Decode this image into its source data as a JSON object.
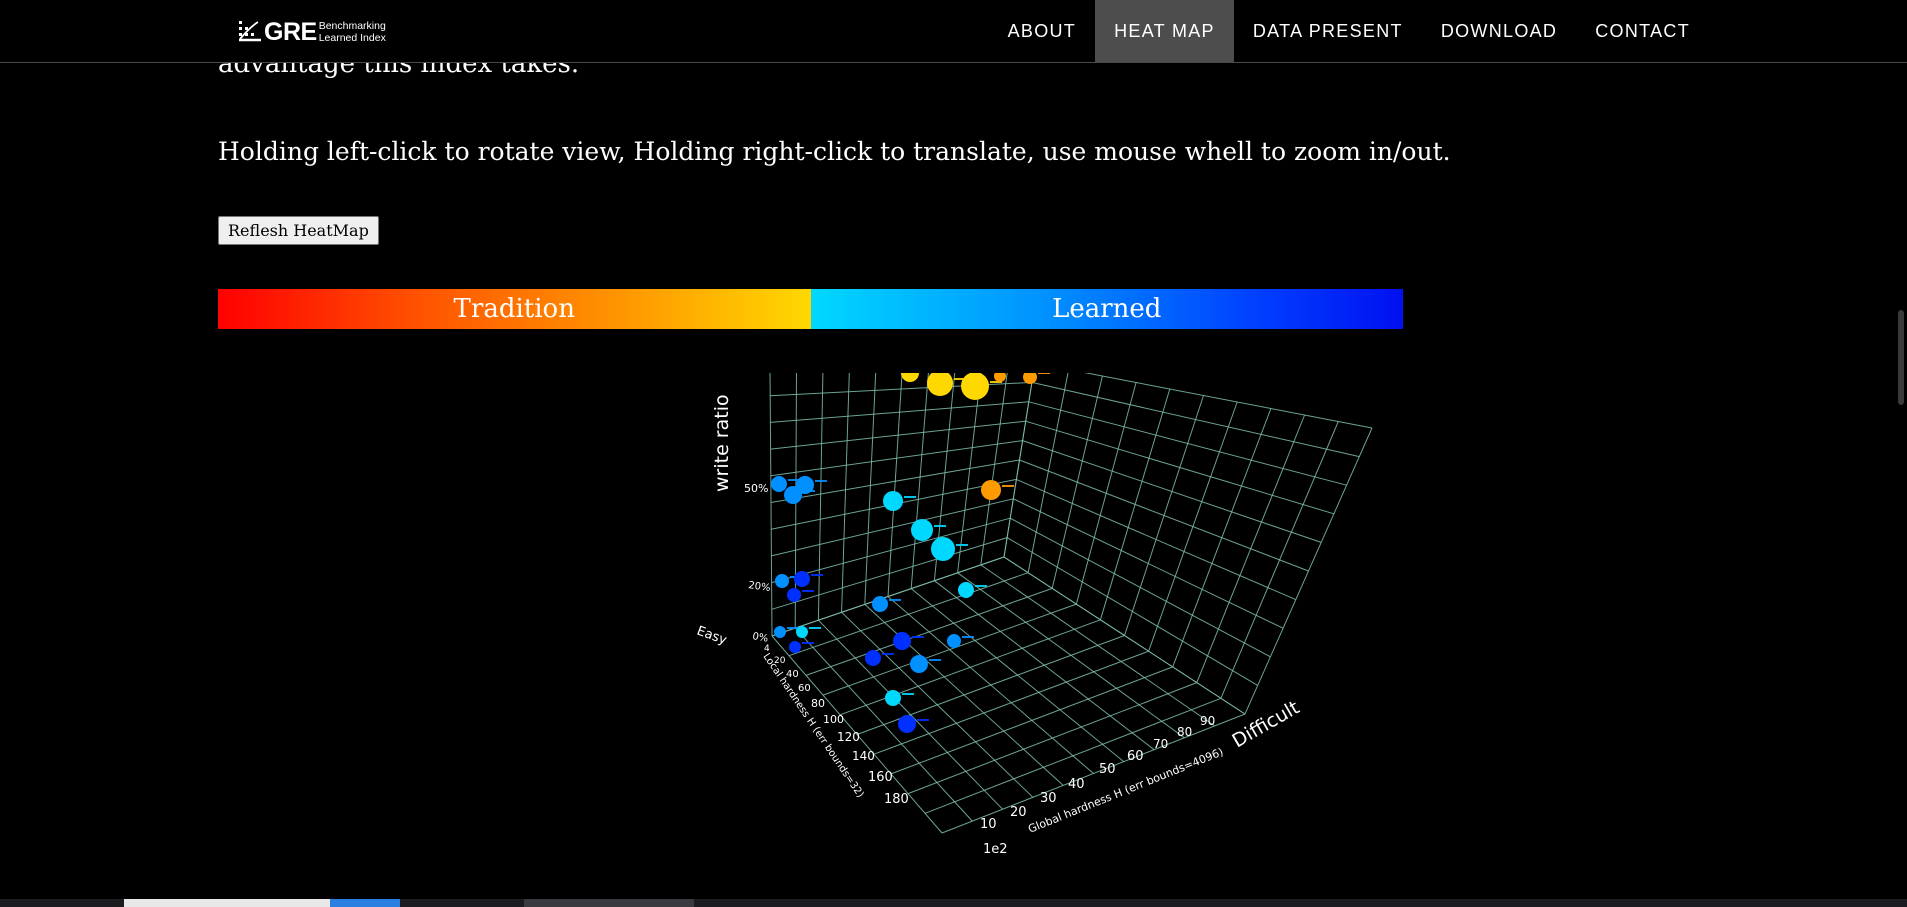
{
  "brand": {
    "name": "GRE",
    "sub_line1": "Benchmarking",
    "sub_line2": "Learned Index"
  },
  "nav": {
    "items": [
      {
        "label": "ABOUT",
        "active": false
      },
      {
        "label": "HEAT MAP",
        "active": true
      },
      {
        "label": "DATA PRESENT",
        "active": false
      },
      {
        "label": "DOWNLOAD",
        "active": false
      },
      {
        "label": "CONTACT",
        "active": false
      }
    ]
  },
  "content": {
    "cut_text": "advantage this index takes.",
    "help_text": "Holding left-click to rotate view, Holding right-click to translate, use mouse whell to zoom in/out.",
    "refresh_label": "Reflesh HeatMap"
  },
  "legend": {
    "left_label": "Tradition",
    "right_label": "Learned",
    "tradition_colors": [
      "#ff0000",
      "#ff5500",
      "#ff9a00",
      "#ffd800"
    ],
    "learned_colors": [
      "#00d8ff",
      "#0090ff",
      "#0040ff",
      "#0010f0"
    ]
  },
  "chart_data": {
    "type": "scatter",
    "dimensions": 3,
    "axes": {
      "z_label": "write ratio",
      "z_ticks": [
        "0%",
        "20%",
        "50%"
      ],
      "x_label": "Global hardness H (err bounds=4096)",
      "x_ticks": [
        "10",
        "20",
        "30",
        "40",
        "50",
        "60",
        "70",
        "80",
        "90"
      ],
      "x_multiplier": "1e2",
      "y_label": "Local hardness H (err bounds=32)",
      "y_ticks": [
        "4",
        "20",
        "40",
        "60",
        "80",
        "100",
        "120",
        "140",
        "160",
        "180"
      ],
      "easy_label": "Easy",
      "difficult_label": "Difficult"
    },
    "grid": true,
    "background": "#000000",
    "grid_color": "#7fbfb0",
    "colors": {
      "tradition": "#ffd800",
      "tradition_mid": "#ff9a00",
      "learned_light": "#00d8ff",
      "learned_mid": "#0090ff",
      "learned_dark": "#0030ff"
    }
  }
}
